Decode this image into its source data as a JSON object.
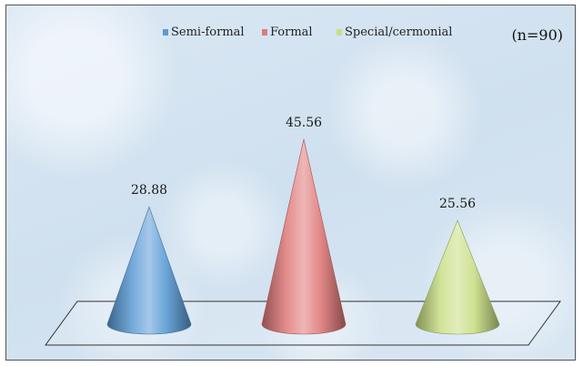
{
  "chart_data": {
    "type": "bar",
    "shape": "cone",
    "note": "(n=90)",
    "categories": [
      "Semi-formal",
      "Formal",
      "Special/cermonial"
    ],
    "values": [
      28.88,
      45.56,
      25.56
    ],
    "value_labels": [
      "28.88",
      "45.56",
      "25.56"
    ],
    "colors": [
      "#5b9bd5",
      "#e07a7a",
      "#c9df86"
    ],
    "legend": {
      "position": "top",
      "entries": [
        "Semi-formal",
        "Formal",
        "Special/cermonial"
      ]
    },
    "ylim": [
      0,
      50
    ],
    "title": "",
    "xlabel": "",
    "ylabel": "",
    "grid": false
  }
}
